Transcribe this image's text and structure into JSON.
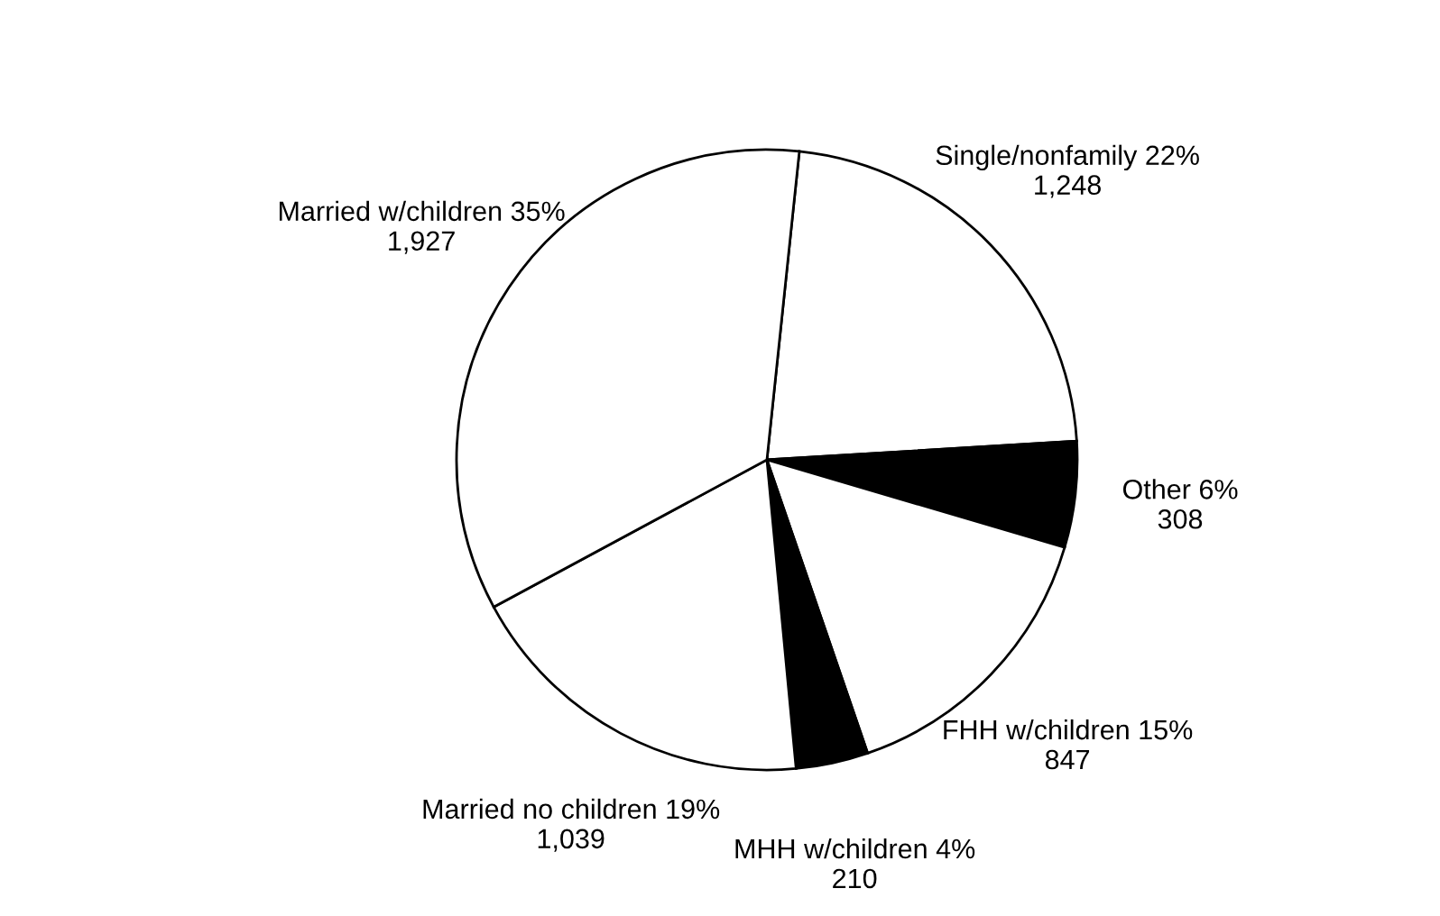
{
  "chart_data": {
    "type": "pie",
    "categories": [
      "Single/nonfamily",
      "Other",
      "FHH w/children",
      "MHH w/children",
      "Married no children",
      "Married w/children"
    ],
    "values": [
      1248,
      308,
      847,
      210,
      1039,
      1927
    ],
    "value_labels": [
      "22%\n1,248",
      "6%\n308",
      "15%\n847",
      "4%\n210",
      "19%\n1,039",
      "35%\n1,927"
    ],
    "colors": [
      "#ffffff",
      "#000000",
      "#ffffff",
      "#000000",
      "#ffffff",
      "#ffffff"
    ]
  }
}
